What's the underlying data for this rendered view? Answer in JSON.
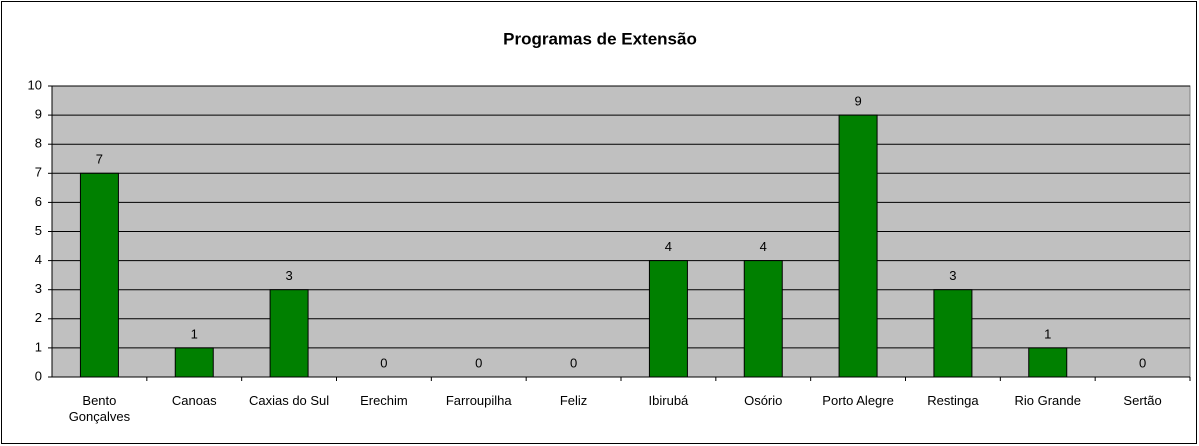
{
  "chart_data": {
    "type": "bar",
    "title": "Programas de Extensão",
    "categories": [
      "Bento Gonçalves",
      "Canoas",
      "Caxias do Sul",
      "Erechim",
      "Farroupilha",
      "Feliz",
      "Ibirubá",
      "Osório",
      "Porto Alegre",
      "Restinga",
      "Rio Grande",
      "Sertão"
    ],
    "values": [
      7,
      1,
      3,
      0,
      0,
      0,
      4,
      4,
      9,
      3,
      1,
      0
    ],
    "color": "#008000",
    "ylim": [
      0,
      10
    ],
    "yticks": [
      0,
      1,
      2,
      3,
      4,
      5,
      6,
      7,
      8,
      9,
      10
    ],
    "grid": true
  }
}
